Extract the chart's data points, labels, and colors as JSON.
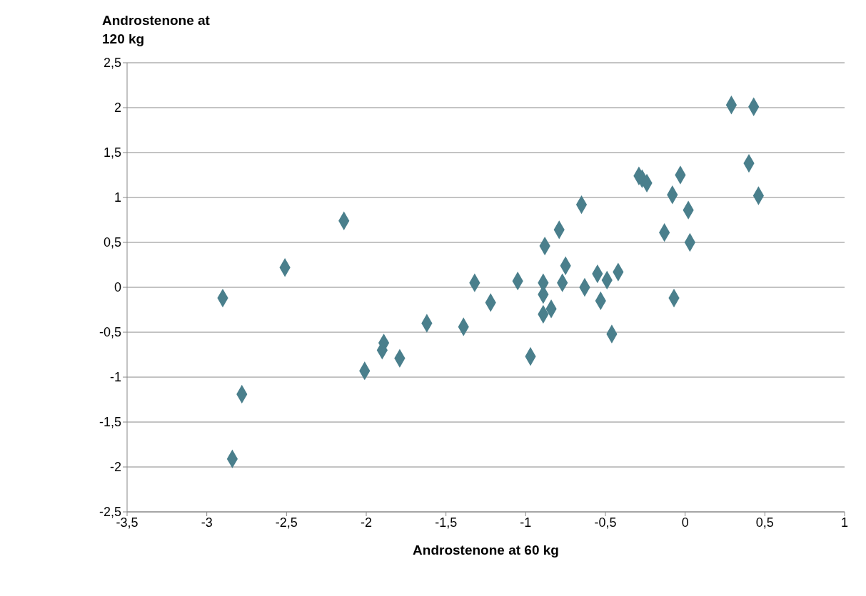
{
  "chart_data": {
    "type": "scatter",
    "xlabel": "Androstenone at 60 kg",
    "ylabel": "Androstenone at 120 kg",
    "color": "#4a7f8c",
    "marker": "diamond",
    "grid": "y",
    "xlim": [
      -3.5,
      1
    ],
    "ylim": [
      -2.5,
      2.5
    ],
    "xticks": [
      {
        "value": -3.5,
        "label": "-3,5"
      },
      -3,
      {
        "value": -2.5,
        "label": "-2,5"
      },
      -2,
      {
        "value": -1.5,
        "label": "-1,5"
      },
      -1,
      {
        "value": -0.5,
        "label": "-0,5"
      },
      0,
      {
        "value": 0.5,
        "label": "0,5"
      },
      1
    ],
    "yticks": [
      {
        "value": -2.5,
        "label": "-2,5"
      },
      -2,
      {
        "value": -1.5,
        "label": "-1,5"
      },
      -1,
      {
        "value": -0.5,
        "label": "-0,5"
      },
      0,
      {
        "value": 0.5,
        "label": "0,5"
      },
      1,
      {
        "value": 1.5,
        "label": "1,5"
      },
      2,
      {
        "value": 2.5,
        "label": "2,5"
      }
    ],
    "x": [
      -2.9,
      -2.78,
      -2.84,
      -2.51,
      -2.14,
      -2.01,
      -1.89,
      -1.9,
      -1.79,
      -1.62,
      -1.39,
      -1.32,
      -1.22,
      -1.05,
      -0.97,
      -0.88,
      -0.89,
      -0.89,
      -0.89,
      -0.84,
      -0.79,
      -0.77,
      -0.75,
      -0.65,
      -0.63,
      -0.55,
      -0.53,
      -0.49,
      -0.46,
      -0.42,
      -0.29,
      -0.27,
      -0.24,
      -0.13,
      -0.08,
      -0.07,
      -0.03,
      0.02,
      0.03,
      0.29,
      0.43,
      0.4,
      0.46
    ],
    "values": [
      -0.12,
      -1.19,
      -1.91,
      0.22,
      0.74,
      -0.93,
      -0.62,
      -0.7,
      -0.79,
      -0.4,
      -0.44,
      0.05,
      -0.17,
      0.07,
      -0.77,
      0.46,
      0.05,
      -0.08,
      -0.3,
      -0.24,
      0.64,
      0.05,
      0.24,
      0.92,
      0,
      0.15,
      -0.15,
      0.08,
      -0.52,
      0.17,
      1.24,
      1.21,
      1.16,
      0.61,
      1.03,
      -0.12,
      1.25,
      0.86,
      0.5,
      2.03,
      2.01,
      1.38,
      1.02
    ]
  }
}
